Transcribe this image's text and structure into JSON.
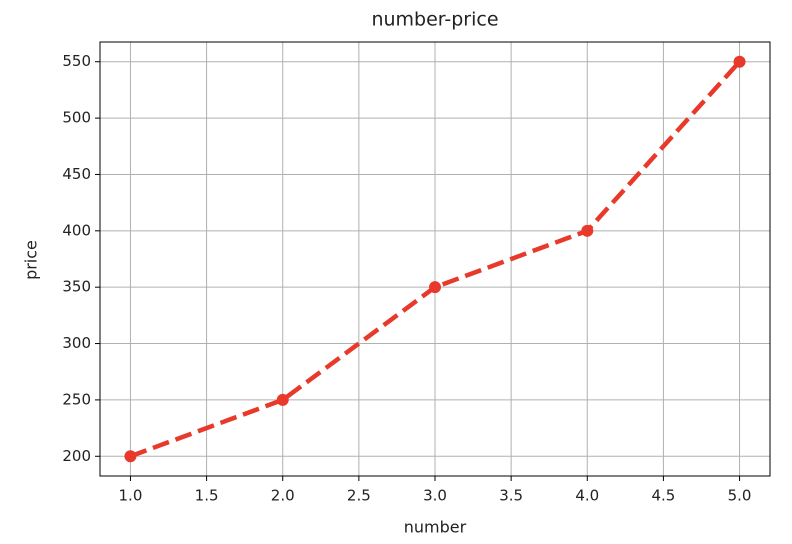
{
  "chart_data": {
    "type": "line",
    "title": "number-price",
    "x_label": "number",
    "y_label": "price",
    "x": [
      1,
      2,
      3,
      4,
      5
    ],
    "series": [
      {
        "color": "#e8392b",
        "values": [
          200,
          250,
          350,
          400,
          550
        ]
      }
    ],
    "xlim": [
      0.8,
      5.2
    ],
    "xticks": [
      {
        "value": 1,
        "label": "1.0"
      },
      {
        "value": 1.5,
        "label": "1.5"
      },
      {
        "value": 2,
        "label": "2.0"
      },
      {
        "value": 2.5,
        "label": "2.5"
      },
      {
        "value": 3,
        "label": "3.0"
      },
      {
        "value": 3.5,
        "label": "3.5"
      },
      {
        "value": 4,
        "label": "4.0"
      },
      {
        "value": 4.5,
        "label": "4.5"
      },
      {
        "value": 5,
        "label": "5.0"
      }
    ],
    "ylim": [
      182.5,
      567.5
    ],
    "yticks": [
      200,
      250,
      300,
      350,
      400,
      450,
      500,
      550
    ],
    "grid": true,
    "line_style": "dashed",
    "marker": "circle"
  }
}
